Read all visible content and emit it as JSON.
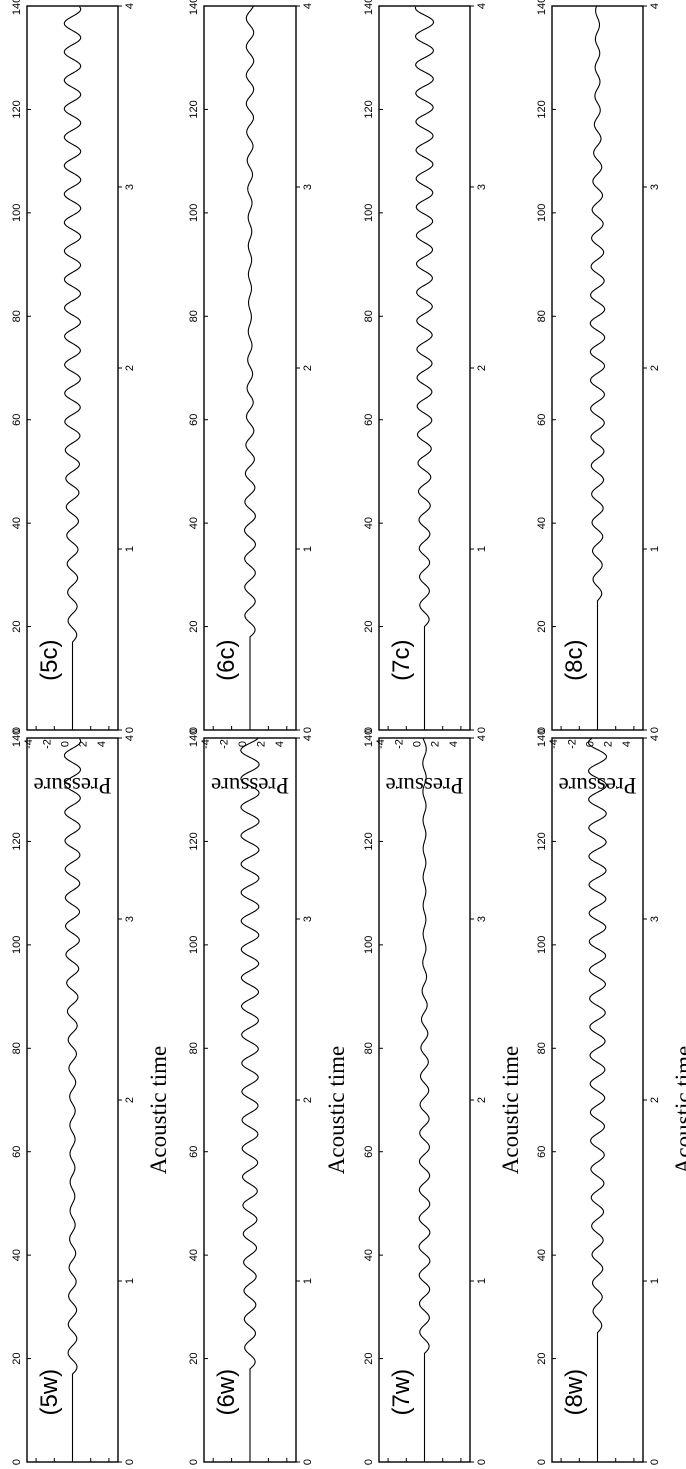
{
  "figure": {
    "row_xlabel": "Acoustic time",
    "ylabel": "Pressure"
  },
  "chart_data": [
    {
      "type": "line",
      "panel_label": "(5c)",
      "xlabel": "",
      "ylabel": "Pressure",
      "xlim": [
        0,
        140
      ],
      "ylim": [
        -5,
        5
      ],
      "secondary_x_ticks": [
        0,
        1,
        2,
        3,
        4
      ],
      "secondary_x_range": [
        0,
        4
      ],
      "x_ticks": [
        0,
        20,
        40,
        60,
        80,
        100,
        120,
        140
      ],
      "y_ticks": [
        -4,
        -2,
        0,
        2,
        4
      ],
      "signal": {
        "onset_x": 17,
        "period_x": 5.5,
        "envelope": {
          "x": [
            17,
            40,
            60,
            100,
            140
          ],
          "amplitude": [
            0.45,
            0.65,
            0.85,
            0.9,
            0.9
          ]
        }
      }
    },
    {
      "type": "line",
      "panel_label": "(6c)",
      "xlabel": "",
      "ylabel": "Pressure",
      "xlim": [
        0,
        140
      ],
      "ylim": [
        -5,
        5
      ],
      "secondary_x_ticks": [
        0,
        1,
        2,
        3,
        4
      ],
      "secondary_x_range": [
        0,
        4
      ],
      "x_ticks": [
        0,
        20,
        40,
        60,
        80,
        100,
        120,
        140
      ],
      "y_ticks": [
        -4,
        -2,
        0,
        2,
        4
      ],
      "signal": {
        "onset_x": 18,
        "period_x": 5.5,
        "envelope": {
          "x": [
            18,
            40,
            55,
            80,
            100,
            120,
            140
          ],
          "amplitude": [
            0.55,
            0.6,
            0.45,
            0.15,
            0.2,
            0.4,
            0.4
          ]
        }
      }
    },
    {
      "type": "line",
      "panel_label": "(7c)",
      "xlabel": "",
      "ylabel": "Pressure",
      "xlim": [
        0,
        140
      ],
      "ylim": [
        -5,
        5
      ],
      "secondary_x_ticks": [
        0,
        1,
        2,
        3,
        4
      ],
      "secondary_x_range": [
        0,
        4
      ],
      "x_ticks": [
        0,
        20,
        40,
        60,
        80,
        100,
        120,
        140
      ],
      "y_ticks": [
        -4,
        -2,
        0,
        2,
        4
      ],
      "signal": {
        "onset_x": 20,
        "period_x": 5.5,
        "envelope": {
          "x": [
            20,
            40,
            60,
            100,
            140
          ],
          "amplitude": [
            0.5,
            0.6,
            0.8,
            0.9,
            1.0
          ]
        }
      }
    },
    {
      "type": "line",
      "panel_label": "(8c)",
      "xlabel": "",
      "ylabel": "Pressure",
      "xlim": [
        0,
        140
      ],
      "ylim": [
        -5,
        5
      ],
      "secondary_x_ticks": [
        0,
        1,
        2,
        3,
        4
      ],
      "secondary_x_range": [
        0,
        4
      ],
      "x_ticks": [
        0,
        20,
        40,
        60,
        80,
        100,
        120,
        140
      ],
      "y_ticks": [
        -4,
        -2,
        0,
        2,
        4
      ],
      "signal": {
        "onset_x": 25,
        "period_x": 5.5,
        "envelope": {
          "x": [
            25,
            40,
            60,
            80,
            100,
            120,
            140
          ],
          "amplitude": [
            0.45,
            0.6,
            0.75,
            0.8,
            0.6,
            0.3,
            0.2
          ]
        }
      }
    },
    {
      "type": "line",
      "panel_label": "(5w)",
      "xlabel": "",
      "ylabel": "Pressure",
      "xlim": [
        0,
        140
      ],
      "ylim": [
        -5,
        5
      ],
      "secondary_x_ticks": [
        0,
        1,
        2,
        3,
        4
      ],
      "secondary_x_range": [
        0,
        4
      ],
      "x_ticks": [
        0,
        20,
        40,
        60,
        80,
        100,
        120,
        140
      ],
      "y_ticks": [
        -4,
        -2,
        0,
        2,
        4
      ],
      "signal": {
        "onset_x": 17,
        "period_x": 5.5,
        "envelope": {
          "x": [
            17,
            30,
            50,
            70,
            100,
            140
          ],
          "amplitude": [
            0.5,
            0.45,
            0.25,
            0.3,
            0.75,
            0.9
          ]
        }
      }
    },
    {
      "type": "line",
      "panel_label": "(6w)",
      "xlabel": "",
      "ylabel": "Pressure",
      "xlim": [
        0,
        140
      ],
      "ylim": [
        -5,
        5
      ],
      "secondary_x_ticks": [
        0,
        1,
        2,
        3,
        4
      ],
      "secondary_x_range": [
        0,
        4
      ],
      "x_ticks": [
        0,
        20,
        40,
        60,
        80,
        100,
        120,
        140
      ],
      "y_ticks": [
        -4,
        -2,
        0,
        2,
        4
      ],
      "signal": {
        "onset_x": 18,
        "period_x": 5.5,
        "envelope": {
          "x": [
            18,
            40,
            60,
            100,
            140
          ],
          "amplitude": [
            0.55,
            0.7,
            0.85,
            0.95,
            1.0
          ]
        }
      }
    },
    {
      "type": "line",
      "panel_label": "(7w)",
      "xlabel": "",
      "ylabel": "Pressure",
      "xlim": [
        0,
        140
      ],
      "ylim": [
        -5,
        5
      ],
      "secondary_x_ticks": [
        0,
        1,
        2,
        3,
        4
      ],
      "secondary_x_range": [
        0,
        4
      ],
      "x_ticks": [
        0,
        20,
        40,
        60,
        80,
        100,
        120,
        140
      ],
      "y_ticks": [
        -4,
        -2,
        0,
        2,
        4
      ],
      "signal": {
        "onset_x": 21,
        "period_x": 5.5,
        "envelope": {
          "x": [
            21,
            40,
            60,
            80,
            100,
            120,
            140
          ],
          "amplitude": [
            0.5,
            0.6,
            0.55,
            0.4,
            0.15,
            0.15,
            0.2
          ]
        }
      }
    },
    {
      "type": "line",
      "panel_label": "(8w)",
      "xlabel": "",
      "ylabel": "Pressure",
      "xlim": [
        0,
        140
      ],
      "ylim": [
        -5,
        5
      ],
      "secondary_x_ticks": [
        0,
        1,
        2,
        3,
        4
      ],
      "secondary_x_range": [
        0,
        4
      ],
      "x_ticks": [
        0,
        20,
        40,
        60,
        80,
        100,
        120,
        140
      ],
      "y_ticks": [
        -4,
        -2,
        0,
        2,
        4
      ],
      "signal": {
        "onset_x": 25,
        "period_x": 5.5,
        "envelope": {
          "x": [
            25,
            40,
            60,
            100,
            140
          ],
          "amplitude": [
            0.45,
            0.6,
            0.75,
            0.9,
            1.0
          ]
        }
      }
    }
  ]
}
